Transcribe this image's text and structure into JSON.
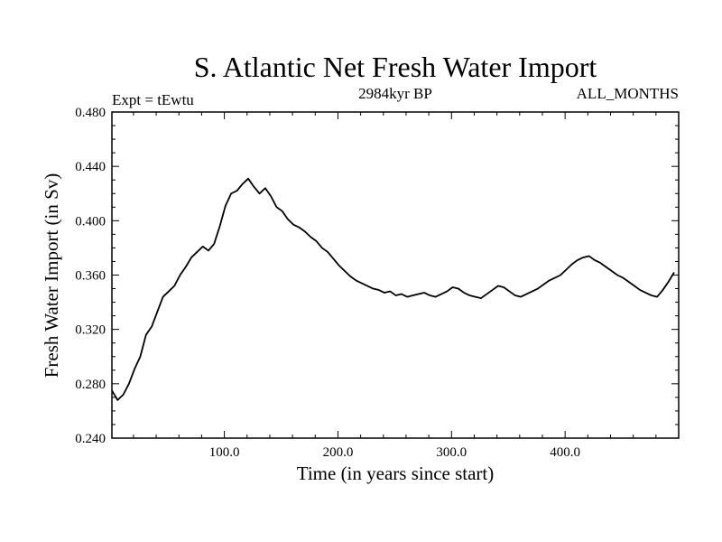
{
  "chart_data": {
    "type": "line",
    "title": "S. Atlantic Net Fresh Water Import",
    "subtitle_left": "Expt = tEwtu",
    "subtitle_center": "2984kyr BP",
    "subtitle_right": "ALL_MONTHS",
    "xlabel": "Time (in years since start)",
    "ylabel": "Fresh Water Import (in Sv)",
    "xlim": [
      1,
      500
    ],
    "ylim": [
      0.24,
      0.48
    ],
    "x_ticks": [
      100,
      200,
      300,
      400
    ],
    "x_tick_labels": [
      "100.0",
      "200.0",
      "300.0",
      "400.0"
    ],
    "y_ticks": [
      0.24,
      0.28,
      0.32,
      0.36,
      0.4,
      0.44,
      0.48
    ],
    "y_tick_labels": [
      "0.240",
      "0.280",
      "0.320",
      "0.360",
      "0.400",
      "0.440",
      "0.480"
    ],
    "series": [
      {
        "name": "Net fresh water import",
        "x_start": 1,
        "x_step": 5,
        "values": [
          0.275,
          0.268,
          0.272,
          0.28,
          0.291,
          0.3,
          0.316,
          0.322,
          0.333,
          0.344,
          0.348,
          0.352,
          0.36,
          0.366,
          0.373,
          0.377,
          0.381,
          0.378,
          0.383,
          0.396,
          0.411,
          0.42,
          0.422,
          0.427,
          0.431,
          0.425,
          0.42,
          0.424,
          0.418,
          0.41,
          0.407,
          0.401,
          0.397,
          0.395,
          0.392,
          0.388,
          0.385,
          0.38,
          0.377,
          0.372,
          0.367,
          0.363,
          0.359,
          0.356,
          0.354,
          0.352,
          0.35,
          0.349,
          0.347,
          0.348,
          0.345,
          0.346,
          0.344,
          0.345,
          0.346,
          0.347,
          0.345,
          0.344,
          0.346,
          0.348,
          0.351,
          0.35,
          0.347,
          0.345,
          0.344,
          0.343,
          0.346,
          0.349,
          0.352,
          0.351,
          0.348,
          0.345,
          0.344,
          0.346,
          0.348,
          0.35,
          0.353,
          0.356,
          0.358,
          0.36,
          0.364,
          0.368,
          0.371,
          0.373,
          0.374,
          0.371,
          0.369,
          0.366,
          0.363,
          0.36,
          0.358,
          0.355,
          0.352,
          0.349,
          0.347,
          0.345,
          0.344,
          0.349,
          0.355,
          0.362
        ]
      }
    ]
  }
}
